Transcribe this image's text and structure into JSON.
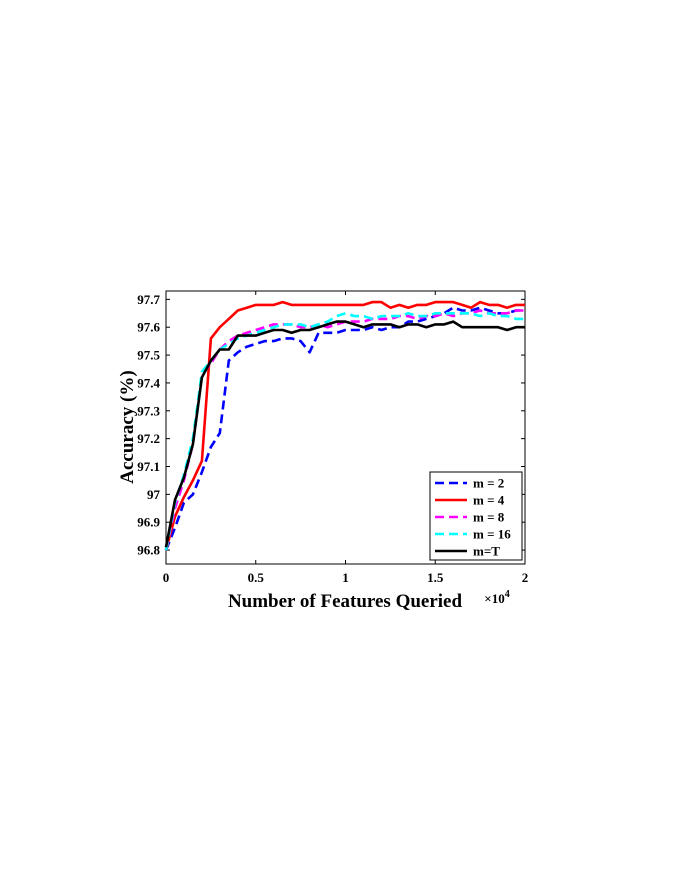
{
  "chart_data": {
    "type": "line",
    "xlabel": "Number of Features Queried",
    "ylabel": "Accuracy (%)",
    "x_multiplier_label": "×10",
    "x_multiplier_exp": "4",
    "xlim": [
      0,
      2
    ],
    "ylim": [
      96.75,
      97.73
    ],
    "x_ticks": [
      0,
      0.5,
      1,
      1.5,
      2
    ],
    "x_tick_labels": [
      "0",
      "0.5",
      "1",
      "1.5",
      "2"
    ],
    "y_ticks": [
      96.8,
      96.9,
      97,
      97.1,
      97.2,
      97.3,
      97.4,
      97.5,
      97.6,
      97.7
    ],
    "y_tick_labels": [
      "96.8",
      "96.9",
      "97",
      "97.1",
      "97.2",
      "97.3",
      "97.4",
      "97.5",
      "97.6",
      "97.7"
    ],
    "grid": false,
    "legend_position": "bottom-right",
    "series": [
      {
        "name": "m = 2",
        "color": "#0000ff",
        "dash": "dashed",
        "points": [
          [
            0,
            96.8
          ],
          [
            0.05,
            96.88
          ],
          [
            0.1,
            96.97
          ],
          [
            0.15,
            97.0
          ],
          [
            0.2,
            97.08
          ],
          [
            0.25,
            97.17
          ],
          [
            0.3,
            97.22
          ],
          [
            0.35,
            97.48
          ],
          [
            0.4,
            97.51
          ],
          [
            0.45,
            97.53
          ],
          [
            0.5,
            97.54
          ],
          [
            0.55,
            97.55
          ],
          [
            0.6,
            97.55
          ],
          [
            0.65,
            97.56
          ],
          [
            0.7,
            97.56
          ],
          [
            0.75,
            97.55
          ],
          [
            0.8,
            97.51
          ],
          [
            0.85,
            97.58
          ],
          [
            0.9,
            97.58
          ],
          [
            0.95,
            97.58
          ],
          [
            1.0,
            97.59
          ],
          [
            1.05,
            97.59
          ],
          [
            1.1,
            97.59
          ],
          [
            1.15,
            97.6
          ],
          [
            1.2,
            97.59
          ],
          [
            1.25,
            97.6
          ],
          [
            1.3,
            97.6
          ],
          [
            1.35,
            97.62
          ],
          [
            1.4,
            97.62
          ],
          [
            1.45,
            97.63
          ],
          [
            1.5,
            97.64
          ],
          [
            1.55,
            97.65
          ],
          [
            1.6,
            97.67
          ],
          [
            1.65,
            97.66
          ],
          [
            1.7,
            97.66
          ],
          [
            1.75,
            97.67
          ],
          [
            1.8,
            97.66
          ],
          [
            1.85,
            97.65
          ],
          [
            1.9,
            97.65
          ],
          [
            1.95,
            97.66
          ],
          [
            2.0,
            97.66
          ]
        ]
      },
      {
        "name": "m = 4",
        "color": "#ff0000",
        "dash": "solid",
        "points": [
          [
            0,
            96.8
          ],
          [
            0.05,
            96.92
          ],
          [
            0.1,
            96.99
          ],
          [
            0.15,
            97.05
          ],
          [
            0.2,
            97.12
          ],
          [
            0.25,
            97.56
          ],
          [
            0.3,
            97.6
          ],
          [
            0.35,
            97.63
          ],
          [
            0.4,
            97.66
          ],
          [
            0.45,
            97.67
          ],
          [
            0.5,
            97.68
          ],
          [
            0.55,
            97.68
          ],
          [
            0.6,
            97.68
          ],
          [
            0.65,
            97.69
          ],
          [
            0.7,
            97.68
          ],
          [
            0.75,
            97.68
          ],
          [
            0.8,
            97.68
          ],
          [
            0.85,
            97.68
          ],
          [
            0.9,
            97.68
          ],
          [
            0.95,
            97.68
          ],
          [
            1.0,
            97.68
          ],
          [
            1.05,
            97.68
          ],
          [
            1.1,
            97.68
          ],
          [
            1.15,
            97.69
          ],
          [
            1.2,
            97.69
          ],
          [
            1.25,
            97.67
          ],
          [
            1.3,
            97.68
          ],
          [
            1.35,
            97.67
          ],
          [
            1.4,
            97.68
          ],
          [
            1.45,
            97.68
          ],
          [
            1.5,
            97.69
          ],
          [
            1.55,
            97.69
          ],
          [
            1.6,
            97.69
          ],
          [
            1.65,
            97.68
          ],
          [
            1.7,
            97.67
          ],
          [
            1.75,
            97.69
          ],
          [
            1.8,
            97.68
          ],
          [
            1.85,
            97.68
          ],
          [
            1.9,
            97.67
          ],
          [
            1.95,
            97.68
          ],
          [
            2.0,
            97.68
          ]
        ]
      },
      {
        "name": "m = 8",
        "color": "#ff00ff",
        "dash": "dashed",
        "points": [
          [
            0,
            96.8
          ],
          [
            0.05,
            96.95
          ],
          [
            0.1,
            97.05
          ],
          [
            0.15,
            97.18
          ],
          [
            0.2,
            97.43
          ],
          [
            0.25,
            97.47
          ],
          [
            0.3,
            97.52
          ],
          [
            0.35,
            97.55
          ],
          [
            0.4,
            97.57
          ],
          [
            0.45,
            97.58
          ],
          [
            0.5,
            97.59
          ],
          [
            0.55,
            97.6
          ],
          [
            0.6,
            97.61
          ],
          [
            0.65,
            97.61
          ],
          [
            0.7,
            97.61
          ],
          [
            0.75,
            97.6
          ],
          [
            0.8,
            97.6
          ],
          [
            0.85,
            97.61
          ],
          [
            0.9,
            97.6
          ],
          [
            0.95,
            97.61
          ],
          [
            1.0,
            97.62
          ],
          [
            1.05,
            97.62
          ],
          [
            1.1,
            97.62
          ],
          [
            1.15,
            97.63
          ],
          [
            1.2,
            97.63
          ],
          [
            1.25,
            97.63
          ],
          [
            1.3,
            97.64
          ],
          [
            1.35,
            97.64
          ],
          [
            1.4,
            97.63
          ],
          [
            1.45,
            97.64
          ],
          [
            1.5,
            97.64
          ],
          [
            1.55,
            97.65
          ],
          [
            1.6,
            97.64
          ],
          [
            1.65,
            97.65
          ],
          [
            1.7,
            97.65
          ],
          [
            1.75,
            97.66
          ],
          [
            1.8,
            97.65
          ],
          [
            1.85,
            97.65
          ],
          [
            1.9,
            97.65
          ],
          [
            1.95,
            97.66
          ],
          [
            2.0,
            97.66
          ]
        ]
      },
      {
        "name": "m = 16",
        "color": "#00ffff",
        "dash": "dashed",
        "points": [
          [
            0,
            96.8
          ],
          [
            0.05,
            96.97
          ],
          [
            0.1,
            97.07
          ],
          [
            0.15,
            97.2
          ],
          [
            0.2,
            97.44
          ],
          [
            0.25,
            97.48
          ],
          [
            0.3,
            97.52
          ],
          [
            0.35,
            97.54
          ],
          [
            0.4,
            97.56
          ],
          [
            0.45,
            97.57
          ],
          [
            0.5,
            97.58
          ],
          [
            0.55,
            97.59
          ],
          [
            0.6,
            97.6
          ],
          [
            0.65,
            97.61
          ],
          [
            0.7,
            97.61
          ],
          [
            0.75,
            97.61
          ],
          [
            0.8,
            97.6
          ],
          [
            0.85,
            97.61
          ],
          [
            0.9,
            97.62
          ],
          [
            0.95,
            97.64
          ],
          [
            1.0,
            97.65
          ],
          [
            1.05,
            97.64
          ],
          [
            1.1,
            97.64
          ],
          [
            1.15,
            97.63
          ],
          [
            1.2,
            97.64
          ],
          [
            1.25,
            97.64
          ],
          [
            1.3,
            97.64
          ],
          [
            1.35,
            97.65
          ],
          [
            1.4,
            97.64
          ],
          [
            1.45,
            97.64
          ],
          [
            1.5,
            97.65
          ],
          [
            1.55,
            97.65
          ],
          [
            1.6,
            97.65
          ],
          [
            1.65,
            97.65
          ],
          [
            1.7,
            97.65
          ],
          [
            1.75,
            97.64
          ],
          [
            1.8,
            97.65
          ],
          [
            1.85,
            97.64
          ],
          [
            1.9,
            97.64
          ],
          [
            1.95,
            97.63
          ],
          [
            2.0,
            97.63
          ]
        ]
      },
      {
        "name": "m=T",
        "color": "#000000",
        "dash": "solid",
        "points": [
          [
            0,
            96.81
          ],
          [
            0.05,
            96.98
          ],
          [
            0.1,
            97.06
          ],
          [
            0.15,
            97.18
          ],
          [
            0.2,
            97.42
          ],
          [
            0.25,
            97.48
          ],
          [
            0.3,
            97.52
          ],
          [
            0.35,
            97.52
          ],
          [
            0.4,
            97.57
          ],
          [
            0.45,
            97.57
          ],
          [
            0.5,
            97.57
          ],
          [
            0.55,
            97.58
          ],
          [
            0.6,
            97.59
          ],
          [
            0.65,
            97.59
          ],
          [
            0.7,
            97.58
          ],
          [
            0.75,
            97.59
          ],
          [
            0.8,
            97.59
          ],
          [
            0.85,
            97.6
          ],
          [
            0.9,
            97.61
          ],
          [
            0.95,
            97.62
          ],
          [
            1.0,
            97.62
          ],
          [
            1.05,
            97.61
          ],
          [
            1.1,
            97.6
          ],
          [
            1.15,
            97.61
          ],
          [
            1.2,
            97.61
          ],
          [
            1.25,
            97.61
          ],
          [
            1.3,
            97.6
          ],
          [
            1.35,
            97.61
          ],
          [
            1.4,
            97.61
          ],
          [
            1.45,
            97.6
          ],
          [
            1.5,
            97.61
          ],
          [
            1.55,
            97.61
          ],
          [
            1.6,
            97.62
          ],
          [
            1.65,
            97.6
          ],
          [
            1.7,
            97.6
          ],
          [
            1.75,
            97.6
          ],
          [
            1.8,
            97.6
          ],
          [
            1.85,
            97.6
          ],
          [
            1.9,
            97.59
          ],
          [
            1.95,
            97.6
          ],
          [
            2.0,
            97.6
          ]
        ]
      }
    ]
  }
}
